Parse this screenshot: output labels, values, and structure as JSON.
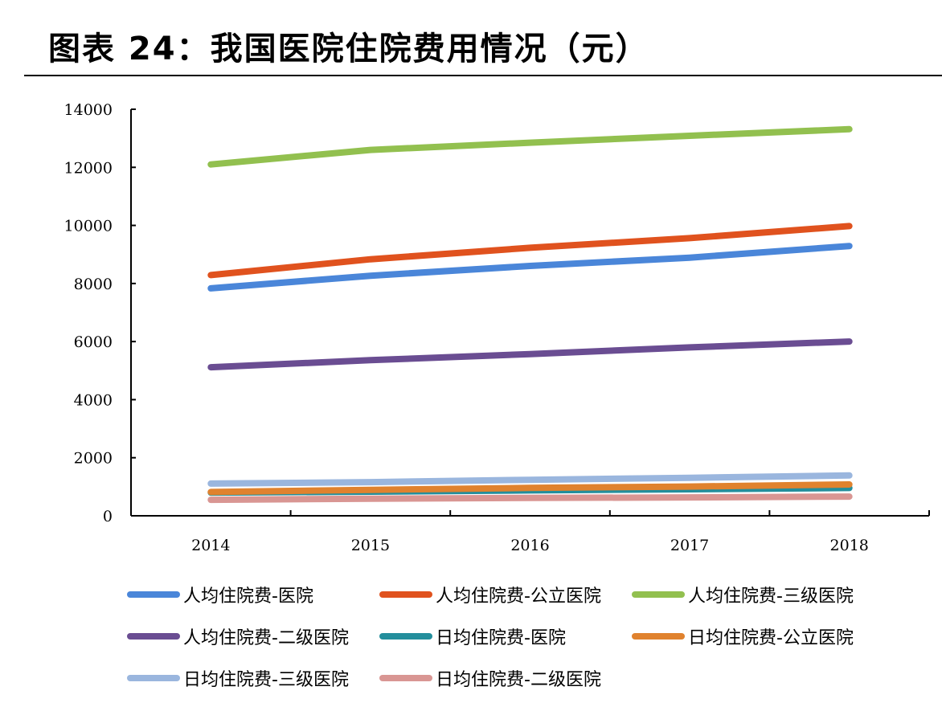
{
  "title": "图表 24：我国医院住院费用情况（元）",
  "colors": {
    "axis": "#000000"
  },
  "chart_data": {
    "type": "line",
    "title": "图表 24：我国医院住院费用情况（元）",
    "xlabel": "",
    "ylabel": "",
    "categories": [
      "2014",
      "2015",
      "2016",
      "2017",
      "2018"
    ],
    "ylim": [
      0,
      14000
    ],
    "yticks": [
      0,
      2000,
      4000,
      6000,
      8000,
      10000,
      12000,
      14000
    ],
    "grid": false,
    "legend_position": "bottom",
    "series": [
      {
        "name": "人均住院费-医院",
        "color": "#4A86D9",
        "values": [
          7832,
          8268,
          8605,
          8890,
          9291
        ]
      },
      {
        "name": "人均住院费-公立医院",
        "color": "#E0521E",
        "values": [
          8290,
          8834,
          9230,
          9563,
          9977
        ]
      },
      {
        "name": "人均住院费-三级医院",
        "color": "#92C04F",
        "values": [
          12100,
          12600,
          12848,
          13087,
          13313
        ]
      },
      {
        "name": "人均住院费-二级医院",
        "color": "#6A4D92",
        "values": [
          5115,
          5359,
          5570,
          5800,
          6002
        ]
      },
      {
        "name": "日均住院费-医院",
        "color": "#238E9C",
        "values": [
          800,
          830,
          875,
          912,
          958
        ]
      },
      {
        "name": "日均住院费-公立医院",
        "color": "#E0822E",
        "values": [
          818,
          895,
          960,
          1008,
          1078
        ]
      },
      {
        "name": "日均住院费-三级医院",
        "color": "#9AB6DE",
        "values": [
          1110,
          1160,
          1240,
          1310,
          1390
        ]
      },
      {
        "name": "日均住院费-二级医院",
        "color": "#D99693",
        "values": [
          550,
          588,
          615,
          633,
          660
        ]
      }
    ]
  }
}
